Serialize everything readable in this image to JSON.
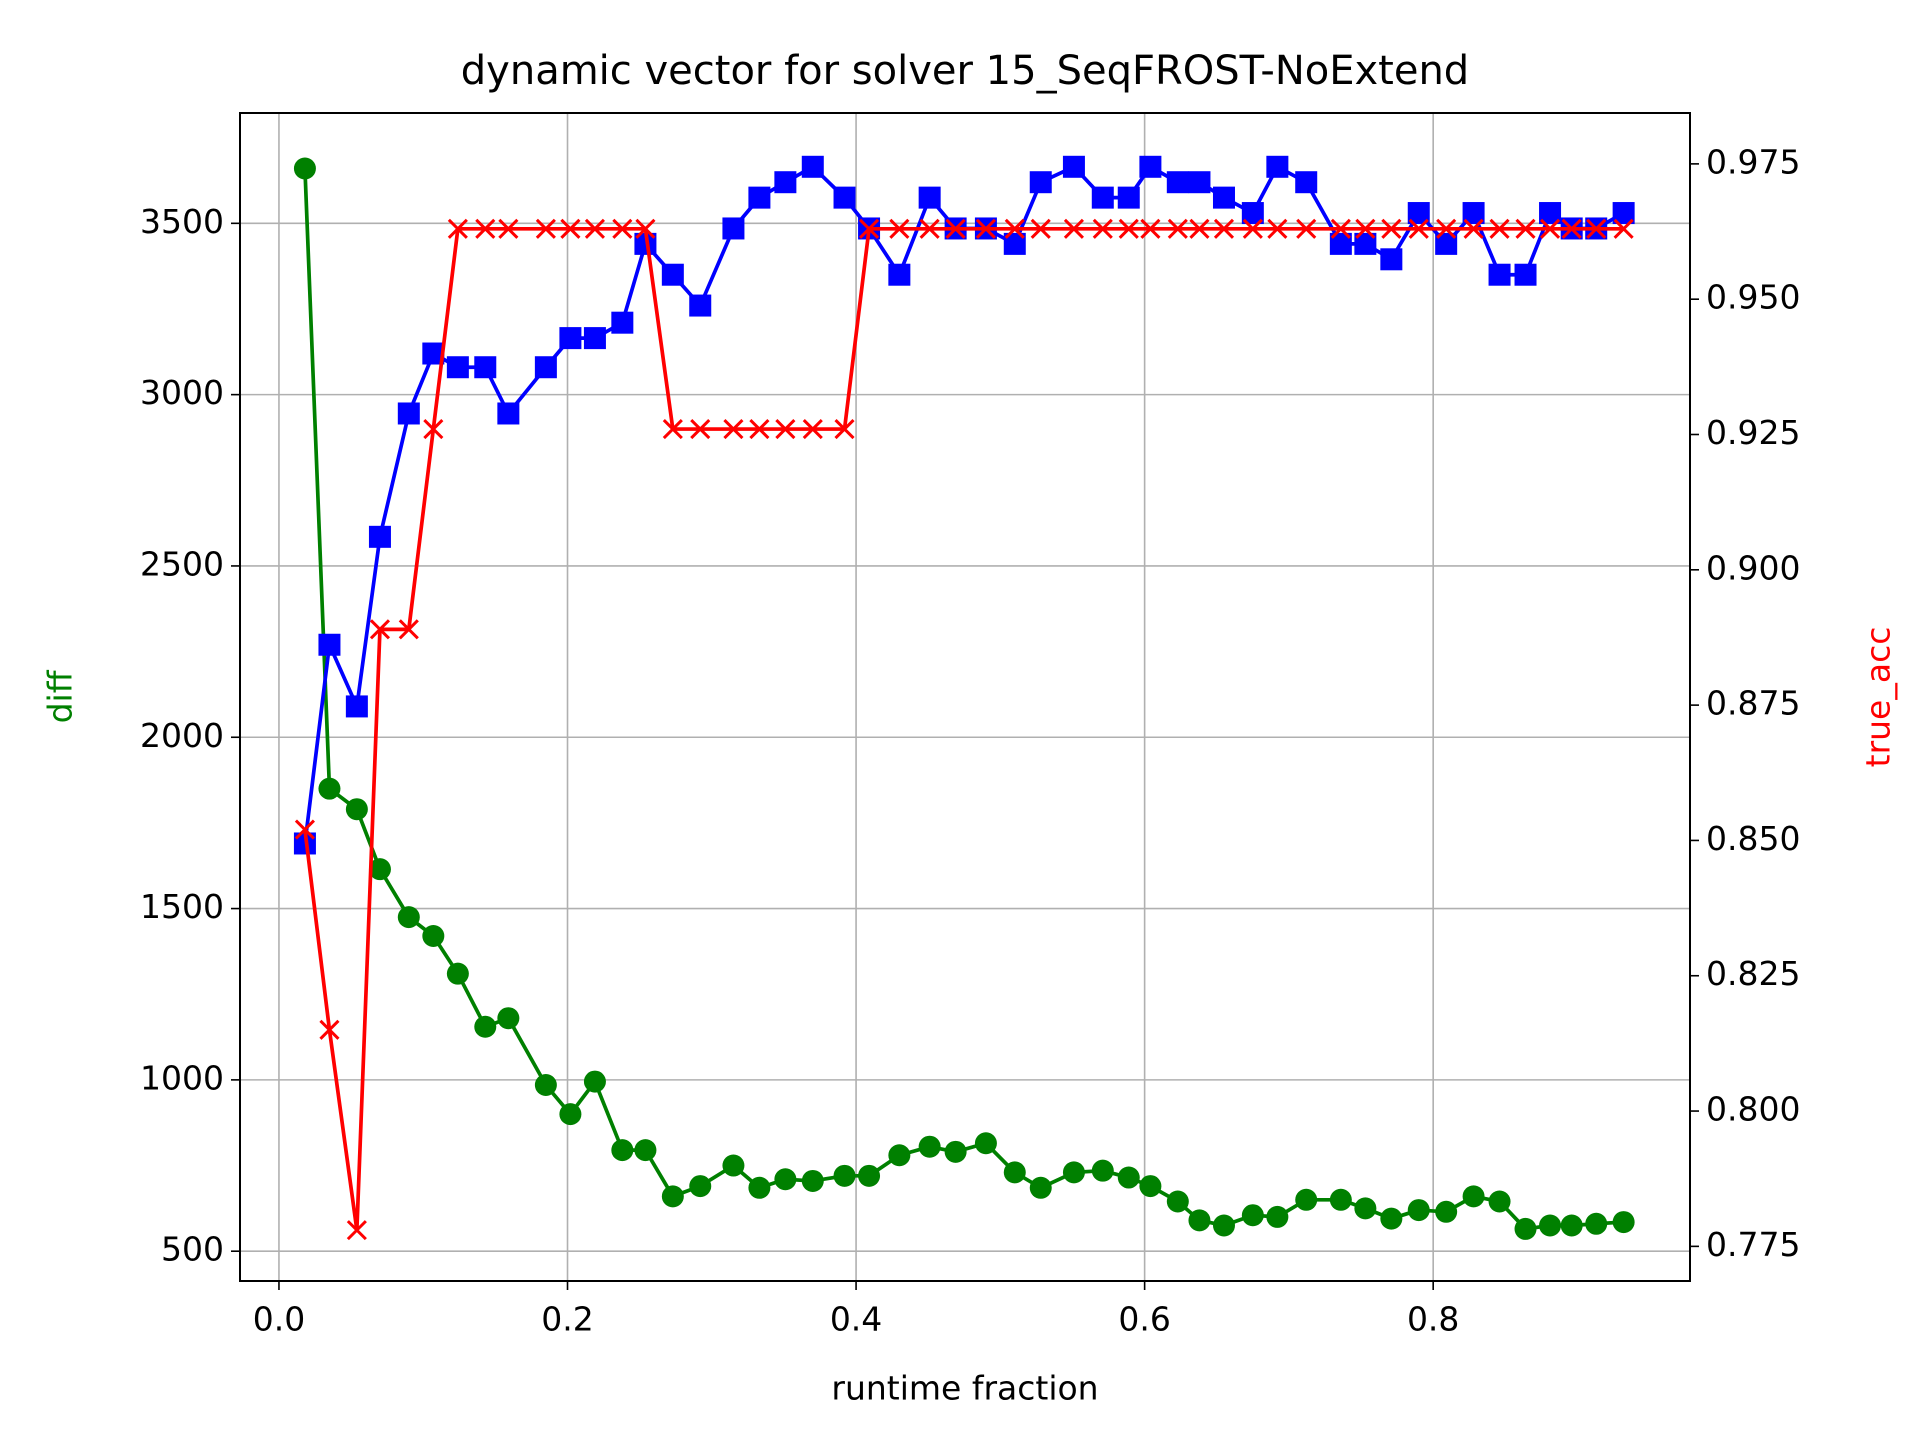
{
  "chart_data": {
    "type": "line",
    "title": "dynamic vector for solver 15_SeqFROST-NoExtend",
    "xlabel": "runtime fraction",
    "ylabel": "diff",
    "y2label": "true_acc",
    "x": [
      0.018,
      0.035,
      0.054,
      0.07,
      0.09,
      0.107,
      0.124,
      0.143,
      0.159,
      0.185,
      0.202,
      0.219,
      0.238,
      0.254,
      0.273,
      0.292,
      0.315,
      0.333,
      0.351,
      0.37,
      0.392,
      0.409,
      0.43,
      0.451,
      0.469,
      0.49,
      0.51,
      0.528,
      0.551,
      0.571,
      0.589,
      0.604,
      0.623,
      0.638,
      0.655,
      0.675,
      0.692,
      0.712,
      0.736,
      0.753,
      0.771,
      0.79,
      0.809,
      0.828,
      0.846,
      0.864,
      0.881,
      0.896,
      0.913,
      0.932
    ],
    "series": [
      {
        "name": "diff",
        "color": "#008000",
        "marker": "circle",
        "axis": "y",
        "values": [
          3660,
          1850,
          1790,
          1615,
          1475,
          1420,
          1310,
          1155,
          1180,
          985,
          900,
          995,
          795,
          795,
          660,
          690,
          750,
          685,
          710,
          705,
          720,
          720,
          780,
          805,
          790,
          815,
          730,
          685,
          730,
          735,
          715,
          690,
          645,
          590,
          575,
          605,
          600,
          650,
          650,
          625,
          595,
          620,
          615,
          660,
          645,
          565,
          575,
          575,
          580,
          585
        ]
      },
      {
        "color": "#0000ff",
        "marker": "square",
        "axis": "y",
        "values": [
          1690,
          2270,
          2090,
          2585,
          2945,
          3120,
          3080,
          3080,
          2945,
          3080,
          3165,
          3165,
          3210,
          3440,
          3350,
          3260,
          3485,
          3575,
          3620,
          3665,
          3575,
          3485,
          3350,
          3575,
          3485,
          3485,
          3440,
          3620,
          3665,
          3575,
          3575,
          3665,
          3620,
          3620,
          3575,
          3530,
          3665,
          3620,
          3440,
          3440,
          3395,
          3530,
          3440,
          3530,
          3350,
          3350,
          3530,
          3485,
          3485,
          3530
        ]
      },
      {
        "name": "true_acc",
        "color": "#ff0000",
        "marker": "x",
        "axis": "y2",
        "values": [
          0.852,
          0.815,
          0.778,
          0.889,
          0.889,
          0.926,
          0.963,
          0.963,
          0.963,
          0.963,
          0.963,
          0.963,
          0.963,
          0.963,
          0.926,
          0.926,
          0.926,
          0.926,
          0.926,
          0.926,
          0.926,
          0.963,
          0.963,
          0.963,
          0.963,
          0.963,
          0.963,
          0.963,
          0.963,
          0.963,
          0.963,
          0.963,
          0.963,
          0.963,
          0.963,
          0.963,
          0.963,
          0.963,
          0.963,
          0.963,
          0.963,
          0.963,
          0.963,
          0.963,
          0.963,
          0.963,
          0.963,
          0.963,
          0.963,
          0.963
        ]
      }
    ],
    "xlim": [
      -0.027,
      0.978
    ],
    "xticks": [
      {
        "value": 0,
        "label": "0.0"
      },
      0.2,
      0.4,
      0.6,
      0.8
    ],
    "ylim": [
      413,
      3822
    ],
    "yticks": [
      500,
      1000,
      1500,
      2000,
      2500,
      3000,
      3500
    ],
    "y2lim": [
      0.7686,
      0.9844
    ],
    "y2ticks": [
      0.775,
      {
        "value": 0.8,
        "label": "0.800"
      },
      0.825,
      {
        "value": 0.85,
        "label": "0.850"
      },
      0.875,
      {
        "value": 0.9,
        "label": "0.900"
      },
      0.925,
      {
        "value": 0.95,
        "label": "0.950"
      },
      0.975
    ],
    "grid": true
  }
}
